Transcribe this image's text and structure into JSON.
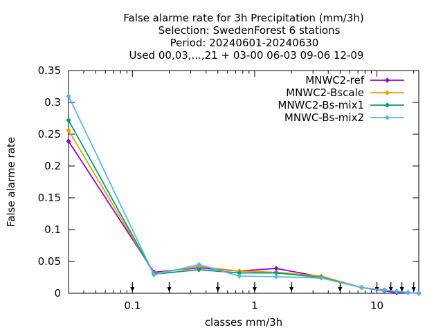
{
  "chart_data": {
    "type": "line",
    "title_lines": [
      "False alarme rate  for 3h Precipitation (mm/3h)",
      "Selection: SwedenForest      6 stations",
      "Period: 20240601-20240630",
      "Used 00,03,...,21 + 03-00 06-03 09-06 12-09"
    ],
    "xlabel": "classes mm/3h",
    "ylabel": "False alarme rate",
    "x_scale": "log",
    "xlim": [
      0.03,
      22
    ],
    "ylim": [
      0,
      0.35
    ],
    "x_ticks": [
      {
        "value": 0.1,
        "label": "0.1"
      },
      {
        "value": 1,
        "label": "1"
      },
      {
        "value": 10,
        "label": "10"
      }
    ],
    "y_ticks": [
      {
        "value": 0,
        "label": "0"
      },
      {
        "value": 0.05,
        "label": "0.05"
      },
      {
        "value": 0.1,
        "label": "0.1"
      },
      {
        "value": 0.15,
        "label": "0.15"
      },
      {
        "value": 0.2,
        "label": "0.2"
      },
      {
        "value": 0.25,
        "label": "0.25"
      },
      {
        "value": 0.3,
        "label": "0.3"
      },
      {
        "value": 0.35,
        "label": "0.35"
      }
    ],
    "class_markers": [
      0.1,
      0.2,
      0.5,
      1,
      2,
      5,
      10,
      13,
      16,
      20
    ],
    "grid": false,
    "legend_position": "top-right",
    "series": [
      {
        "name": "MNWC2-ref",
        "color": "#9400d3",
        "x": [
          0.03,
          0.15,
          0.35,
          0.75,
          1.5,
          3.5,
          7.5,
          11.5,
          14.5,
          18,
          22
        ],
        "y": [
          0.239,
          0.033,
          0.04,
          0.035,
          0.039,
          0.026,
          0.009,
          0.004,
          0.001,
          0.001,
          0.0
        ]
      },
      {
        "name": "MNWC2-Bscale",
        "color": "#e69f00",
        "x": [
          0.03,
          0.15,
          0.35,
          0.75,
          1.5,
          3.5,
          7.5,
          11.5,
          14.5,
          18,
          22
        ],
        "y": [
          0.256,
          0.031,
          0.042,
          0.035,
          0.033,
          0.027,
          0.009,
          0.005,
          0.003,
          0.001,
          0.0
        ]
      },
      {
        "name": "MNWC2-Bs-mix1",
        "color": "#009e73",
        "x": [
          0.03,
          0.15,
          0.35,
          0.75,
          1.5,
          3.5,
          7.5,
          11.5,
          14.5,
          18,
          22
        ],
        "y": [
          0.272,
          0.03,
          0.037,
          0.032,
          0.032,
          0.025,
          0.009,
          0.005,
          0.003,
          0.001,
          0.0
        ]
      },
      {
        "name": "MNWC-Bs-mix2",
        "color": "#56b4e9",
        "x": [
          0.03,
          0.15,
          0.35,
          0.75,
          1.5,
          3.5,
          7.5,
          11.5,
          14.5,
          18,
          22
        ],
        "y": [
          0.31,
          0.029,
          0.045,
          0.027,
          0.026,
          0.024,
          0.009,
          0.005,
          0.003,
          0.001,
          0.0
        ]
      }
    ]
  }
}
